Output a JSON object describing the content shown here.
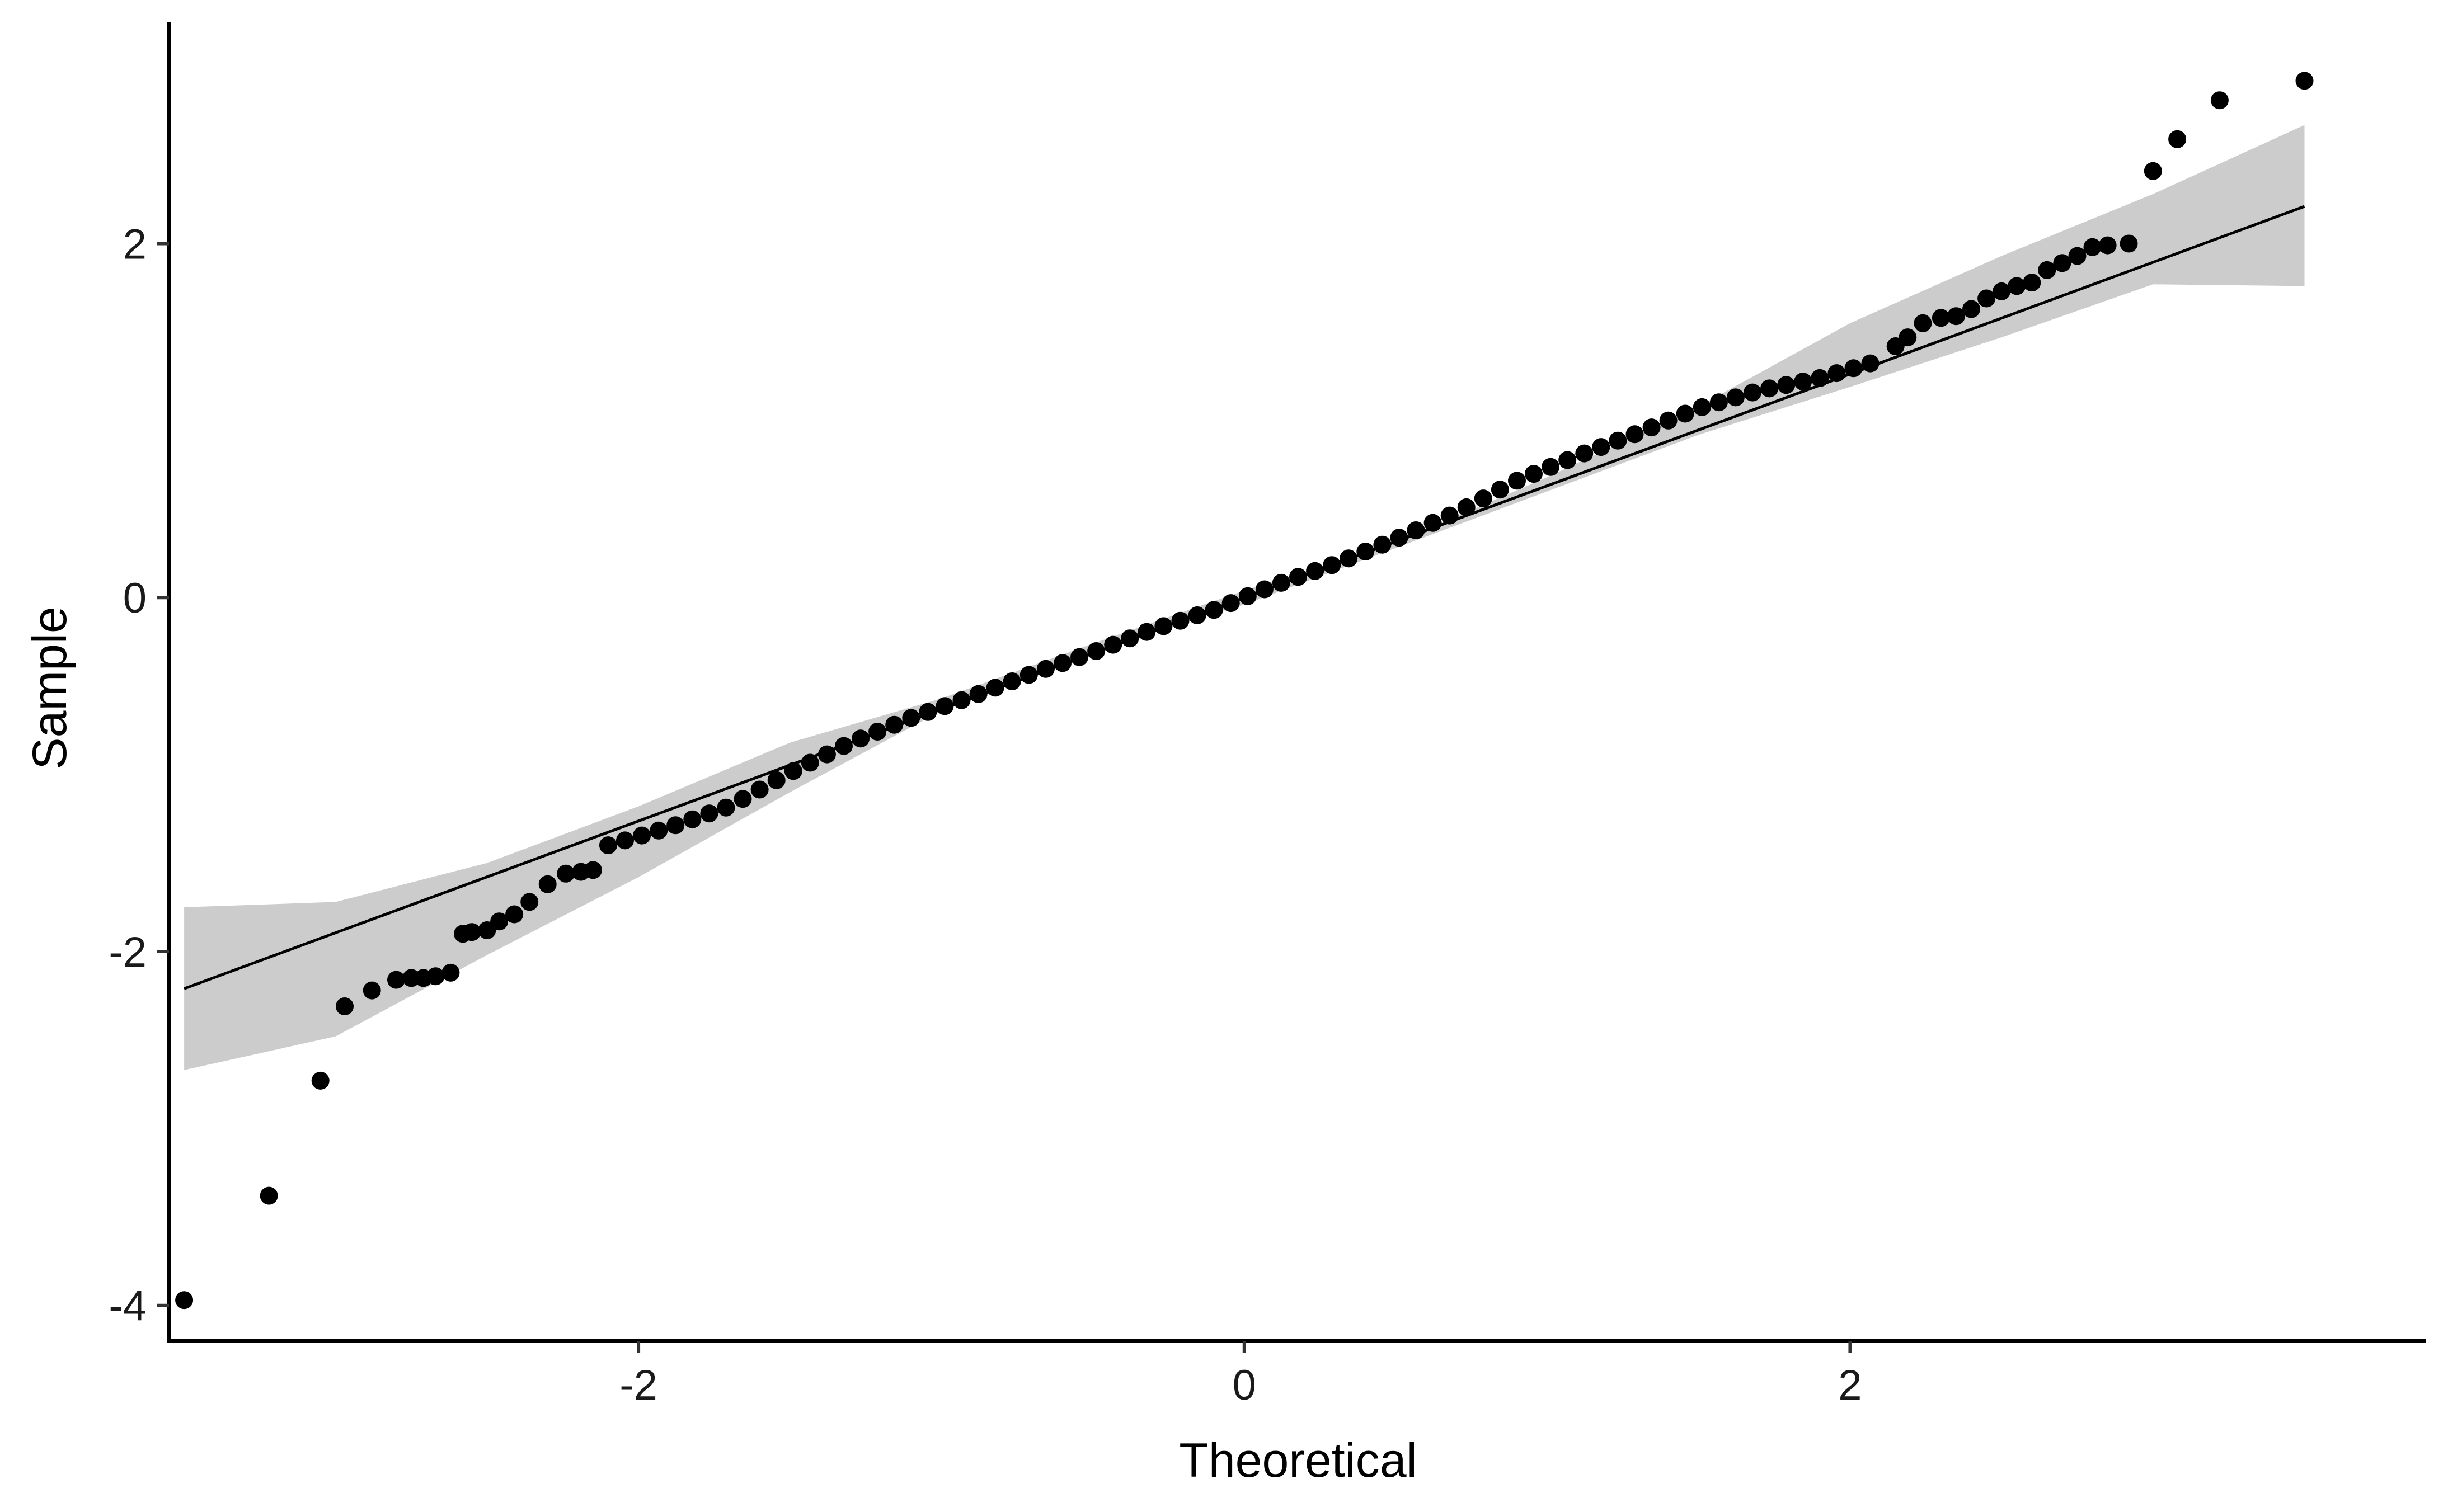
{
  "chart_data": {
    "type": "scatter",
    "subtype": "qq-plot",
    "xlabel": "Theoretical",
    "ylabel": "Sample",
    "xlim": [
      -3.55,
      3.9
    ],
    "ylim": [
      -4.2,
      3.25
    ],
    "x_ticks": [
      -2,
      0,
      2
    ],
    "y_ticks": [
      -4,
      -2,
      0,
      2
    ],
    "x_tick_labels": [
      "-2",
      "0",
      "2"
    ],
    "y_tick_labels": [
      "-4",
      "-2",
      "0",
      "2"
    ],
    "grid": false,
    "legend": "none",
    "reference_line": {
      "x": [
        -3.5,
        3.5
      ],
      "y": [
        -2.21,
        2.21
      ]
    },
    "confidence_band": {
      "x": [
        -3.5,
        -3.0,
        -2.5,
        -2.0,
        -1.5,
        -1.0,
        -0.5,
        0.0,
        0.5,
        1.0,
        1.5,
        2.0,
        2.5,
        3.0,
        3.5
      ],
      "lower": [
        -2.67,
        -2.48,
        -2.02,
        -1.58,
        -1.1,
        -0.64,
        -0.29,
        -0.04,
        0.28,
        0.6,
        0.92,
        1.19,
        1.47,
        1.77,
        1.76
      ],
      "upper": [
        -1.75,
        -1.72,
        -1.5,
        -1.18,
        -0.82,
        -0.57,
        -0.26,
        0.04,
        0.31,
        0.68,
        1.08,
        1.55,
        1.93,
        2.28,
        2.67
      ]
    },
    "tail_points": [
      [
        -3.5,
        -3.97
      ],
      [
        -3.22,
        -3.38
      ],
      [
        -3.05,
        -2.73
      ],
      [
        -2.97,
        -2.31
      ],
      [
        -2.88,
        -2.22
      ],
      [
        -2.8,
        -2.16
      ],
      [
        -2.75,
        -2.15
      ],
      [
        -2.71,
        -2.15
      ],
      [
        -2.67,
        -2.14
      ],
      [
        -2.62,
        -2.12
      ],
      [
        -2.58,
        -1.9
      ],
      [
        -2.55,
        -1.89
      ],
      [
        -2.5,
        -1.88
      ],
      [
        -2.46,
        -1.83
      ],
      [
        -2.41,
        -1.79
      ],
      [
        -2.36,
        -1.72
      ],
      [
        -2.3,
        -1.62
      ],
      [
        -2.24,
        -1.56
      ],
      [
        -2.19,
        -1.55
      ],
      [
        -2.15,
        -1.54
      ],
      [
        2.15,
        1.42
      ],
      [
        2.19,
        1.47
      ],
      [
        2.24,
        1.55
      ],
      [
        2.3,
        1.58
      ],
      [
        2.35,
        1.59
      ],
      [
        2.4,
        1.63
      ],
      [
        2.45,
        1.69
      ],
      [
        2.5,
        1.73
      ],
      [
        2.55,
        1.76
      ],
      [
        2.6,
        1.78
      ],
      [
        2.65,
        1.85
      ],
      [
        2.7,
        1.89
      ],
      [
        2.75,
        1.93
      ],
      [
        2.8,
        1.98
      ],
      [
        2.85,
        1.99
      ],
      [
        2.92,
        2.0
      ],
      [
        3.0,
        2.41
      ],
      [
        3.08,
        2.59
      ],
      [
        3.22,
        2.81
      ],
      [
        3.5,
        2.92
      ]
    ],
    "bulk_curve": {
      "x": [
        -2.1,
        -1.9,
        -1.7,
        -1.5,
        -1.3,
        -1.1,
        -0.9,
        -0.7,
        -0.5,
        -0.3,
        -0.1,
        0.0,
        0.1,
        0.3,
        0.5,
        0.7,
        0.9,
        1.1,
        1.3,
        1.5,
        1.7,
        1.9,
        2.1
      ],
      "y": [
        -1.4,
        -1.3,
        -1.18,
        -0.99,
        -0.82,
        -0.68,
        -0.56,
        -0.43,
        -0.31,
        -0.18,
        -0.07,
        0.0,
        0.07,
        0.19,
        0.33,
        0.48,
        0.66,
        0.8,
        0.93,
        1.07,
        1.17,
        1.24,
        1.34
      ],
      "density": 18
    }
  }
}
